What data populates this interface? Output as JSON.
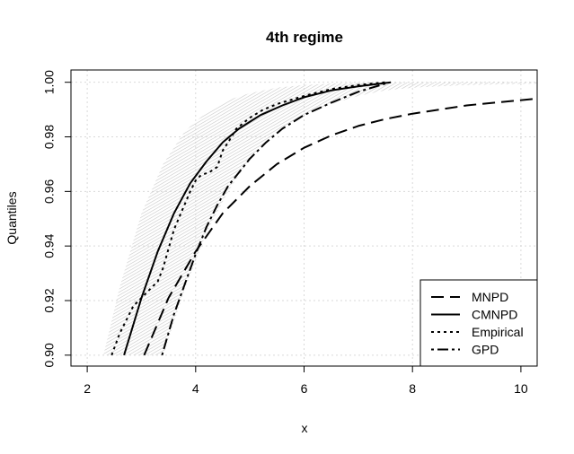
{
  "chart_data": {
    "type": "line",
    "title": "4th regime",
    "xlabel": "x",
    "ylabel": "Quantiles",
    "xlim": [
      1.7,
      10.3
    ],
    "ylim": [
      0.896,
      1.0045
    ],
    "x_ticks": [
      2,
      4,
      6,
      8,
      10
    ],
    "y_ticks": [
      0.9,
      0.92,
      0.94,
      0.96,
      0.98,
      1.0
    ],
    "x_tick_labels": [
      "2",
      "4",
      "6",
      "8",
      "10"
    ],
    "y_tick_labels": [
      "0.90",
      "0.92",
      "0.94",
      "0.96",
      "0.98",
      "1.00"
    ],
    "grid": true,
    "legend_position": "bottom-right",
    "band": {
      "label": "",
      "color": "#c8c8c8",
      "lower": {
        "x": [
          3.4,
          3.8,
          4.2,
          4.6,
          5.0,
          5.5,
          6.0,
          6.5,
          7.0,
          7.5,
          8.0,
          9.0,
          10.3
        ],
        "y": [
          0.9,
          0.924,
          0.945,
          0.96,
          0.972,
          0.982,
          0.988,
          0.992,
          0.995,
          0.997,
          0.998,
          0.999,
          0.9995
        ]
      },
      "upper": {
        "x": [
          2.3,
          2.6,
          3.0,
          3.4,
          3.8,
          4.2,
          4.6,
          5.0,
          5.5,
          6.0,
          6.5,
          7.0,
          8.0,
          10.3
        ],
        "y": [
          0.9,
          0.925,
          0.952,
          0.97,
          0.982,
          0.989,
          0.9935,
          0.996,
          0.998,
          0.999,
          0.9995,
          0.9998,
          1.0,
          1.0
        ]
      }
    },
    "series": [
      {
        "name": "MNPD",
        "style": "dashed",
        "x": [
          3.05,
          3.5,
          4.0,
          4.5,
          5.0,
          5.5,
          6.0,
          6.5,
          7.0,
          7.5,
          8.0,
          8.5,
          9.0,
          9.5,
          10.3
        ],
        "y": [
          0.9,
          0.921,
          0.938,
          0.952,
          0.962,
          0.97,
          0.976,
          0.9805,
          0.984,
          0.9865,
          0.9885,
          0.99,
          0.9915,
          0.9925,
          0.994
        ]
      },
      {
        "name": "CMNPD",
        "style": "solid",
        "x": [
          2.68,
          3.0,
          3.3,
          3.6,
          3.9,
          4.2,
          4.5,
          4.8,
          5.2,
          5.6,
          6.0,
          6.5,
          7.0,
          7.6
        ],
        "y": [
          0.9,
          0.921,
          0.938,
          0.952,
          0.963,
          0.971,
          0.978,
          0.983,
          0.988,
          0.9915,
          0.9945,
          0.997,
          0.9985,
          1.0
        ]
      },
      {
        "name": "Empirical",
        "style": "dotted",
        "x": [
          2.45,
          2.6,
          2.75,
          2.85,
          3.0,
          3.15,
          3.3,
          3.4,
          3.5,
          3.6,
          3.75,
          3.9,
          4.0,
          4.1,
          4.25,
          4.4,
          4.5,
          4.6,
          4.75,
          5.0,
          5.25,
          5.5,
          5.75,
          6.0,
          6.5,
          7.0,
          7.5
        ],
        "y": [
          0.9,
          0.908,
          0.914,
          0.918,
          0.921,
          0.924,
          0.927,
          0.932,
          0.939,
          0.946,
          0.953,
          0.96,
          0.964,
          0.966,
          0.967,
          0.969,
          0.975,
          0.978,
          0.983,
          0.987,
          0.99,
          0.992,
          0.9935,
          0.995,
          0.9975,
          0.999,
          1.0
        ]
      },
      {
        "name": "GPD",
        "style": "dotdash",
        "x": [
          3.38,
          3.6,
          3.8,
          4.0,
          4.2,
          4.4,
          4.6,
          4.8,
          5.0,
          5.3,
          5.6,
          6.0,
          6.5,
          7.0,
          7.5
        ],
        "y": [
          0.9,
          0.915,
          0.926,
          0.937,
          0.947,
          0.955,
          0.962,
          0.967,
          0.972,
          0.978,
          0.983,
          0.988,
          0.9925,
          0.9965,
          0.9995
        ]
      }
    ]
  }
}
